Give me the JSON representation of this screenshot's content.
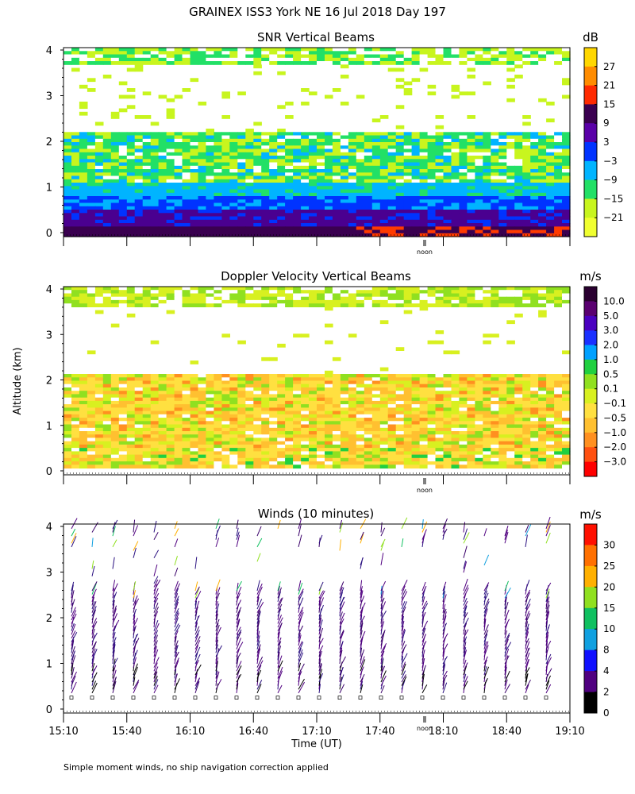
{
  "figure": {
    "title": "GRAINEX ISS3 York NE  16 Jul 2018 Day 197",
    "ylabel": "Altitude (km)",
    "xlabel": "Time (UT)",
    "footnote": "Simple moment winds, no ship navigation correction applied",
    "noon_label": "noon"
  },
  "chart_data": [
    {
      "type": "heatmap",
      "title": "SNR Vertical Beams",
      "xlabel": "Time (UT)",
      "ylabel": "Altitude (km)",
      "xlim": [
        "15:10",
        "19:10"
      ],
      "ylim": [
        0,
        4
      ],
      "yticks": [
        "0",
        "1",
        "2",
        "3",
        "4"
      ],
      "colorbar": {
        "unit": "dB",
        "labels": [
          "27",
          "21",
          "15",
          "9",
          "3",
          "−3",
          "−9",
          "−15",
          "−21"
        ],
        "colors": [
          "#ffd700",
          "#ff8c00",
          "#ff2a00",
          "#3a0050",
          "#5a00a8",
          "#0033ff",
          "#00b4ff",
          "#22e066",
          "#c8f51e",
          "#f0ff30"
        ]
      },
      "layers": [
        {
          "altitude_km": [
            0.05,
            0.25
          ],
          "value_db": "9 to 15"
        },
        {
          "altitude_km": [
            0.25,
            0.7
          ],
          "value_db": "-3 to 9"
        },
        {
          "altitude_km": [
            0.7,
            1.1
          ],
          "value_db": "-9 to -3"
        },
        {
          "altitude_km": [
            1.1,
            2.2
          ],
          "value_db": "-15 to -9"
        },
        {
          "altitude_km": [
            2.2,
            3.7
          ],
          "value_db": "no data"
        },
        {
          "altitude_km": [
            3.7,
            4.0
          ],
          "value_db": "-21 to -15"
        }
      ]
    },
    {
      "type": "heatmap",
      "title": "Doppler Velocity Vertical Beams",
      "xlabel": "Time (UT)",
      "ylabel": "Altitude (km)",
      "xlim": [
        "15:10",
        "19:10"
      ],
      "ylim": [
        0,
        4
      ],
      "yticks": [
        "0",
        "1",
        "2",
        "3",
        "4"
      ],
      "colorbar": {
        "unit": "m/s",
        "labels": [
          "10.0",
          "5.0",
          "3.0",
          "2.0",
          "1.0",
          "0.5",
          "0.1",
          "−0.1",
          "−0.5",
          "−1.0",
          "−2.0",
          "−3.0"
        ],
        "colors": [
          "#2a0030",
          "#5a0070",
          "#4a00c0",
          "#1a30ff",
          "#00a0ff",
          "#20d040",
          "#90e020",
          "#d8f020",
          "#ffe040",
          "#ffc030",
          "#ff9020",
          "#ff5010",
          "#ff0000"
        ]
      },
      "layers": [
        {
          "altitude_km": [
            0.1,
            2.15
          ],
          "value_ms": "-1.0 to 0.5"
        },
        {
          "altitude_km": [
            2.15,
            3.6
          ],
          "value_ms": "no data"
        },
        {
          "altitude_km": [
            3.6,
            4.0
          ],
          "value_ms": "-0.1 to 0.5"
        }
      ]
    },
    {
      "type": "scatter",
      "title": "Winds (10 minutes)",
      "xlabel": "Time (UT)",
      "ylabel": "Altitude (km)",
      "xticks": [
        "15:10",
        "15:40",
        "16:10",
        "16:40",
        "17:10",
        "17:40",
        "18:10",
        "18:40",
        "19:10"
      ],
      "ylim": [
        0,
        4
      ],
      "yticks": [
        "0",
        "1",
        "2",
        "3",
        "4"
      ],
      "dominant_speed_ms": "2 to 4",
      "colorbar": {
        "unit": "m/s",
        "labels": [
          "30",
          "25",
          "20",
          "15",
          "10",
          "8",
          "4",
          "2",
          "0"
        ],
        "colors": [
          "#ff1000",
          "#ff7000",
          "#ffb000",
          "#90e020",
          "#10c060",
          "#10a0e0",
          "#1010ff",
          "#500080",
          "#000000"
        ]
      }
    }
  ]
}
